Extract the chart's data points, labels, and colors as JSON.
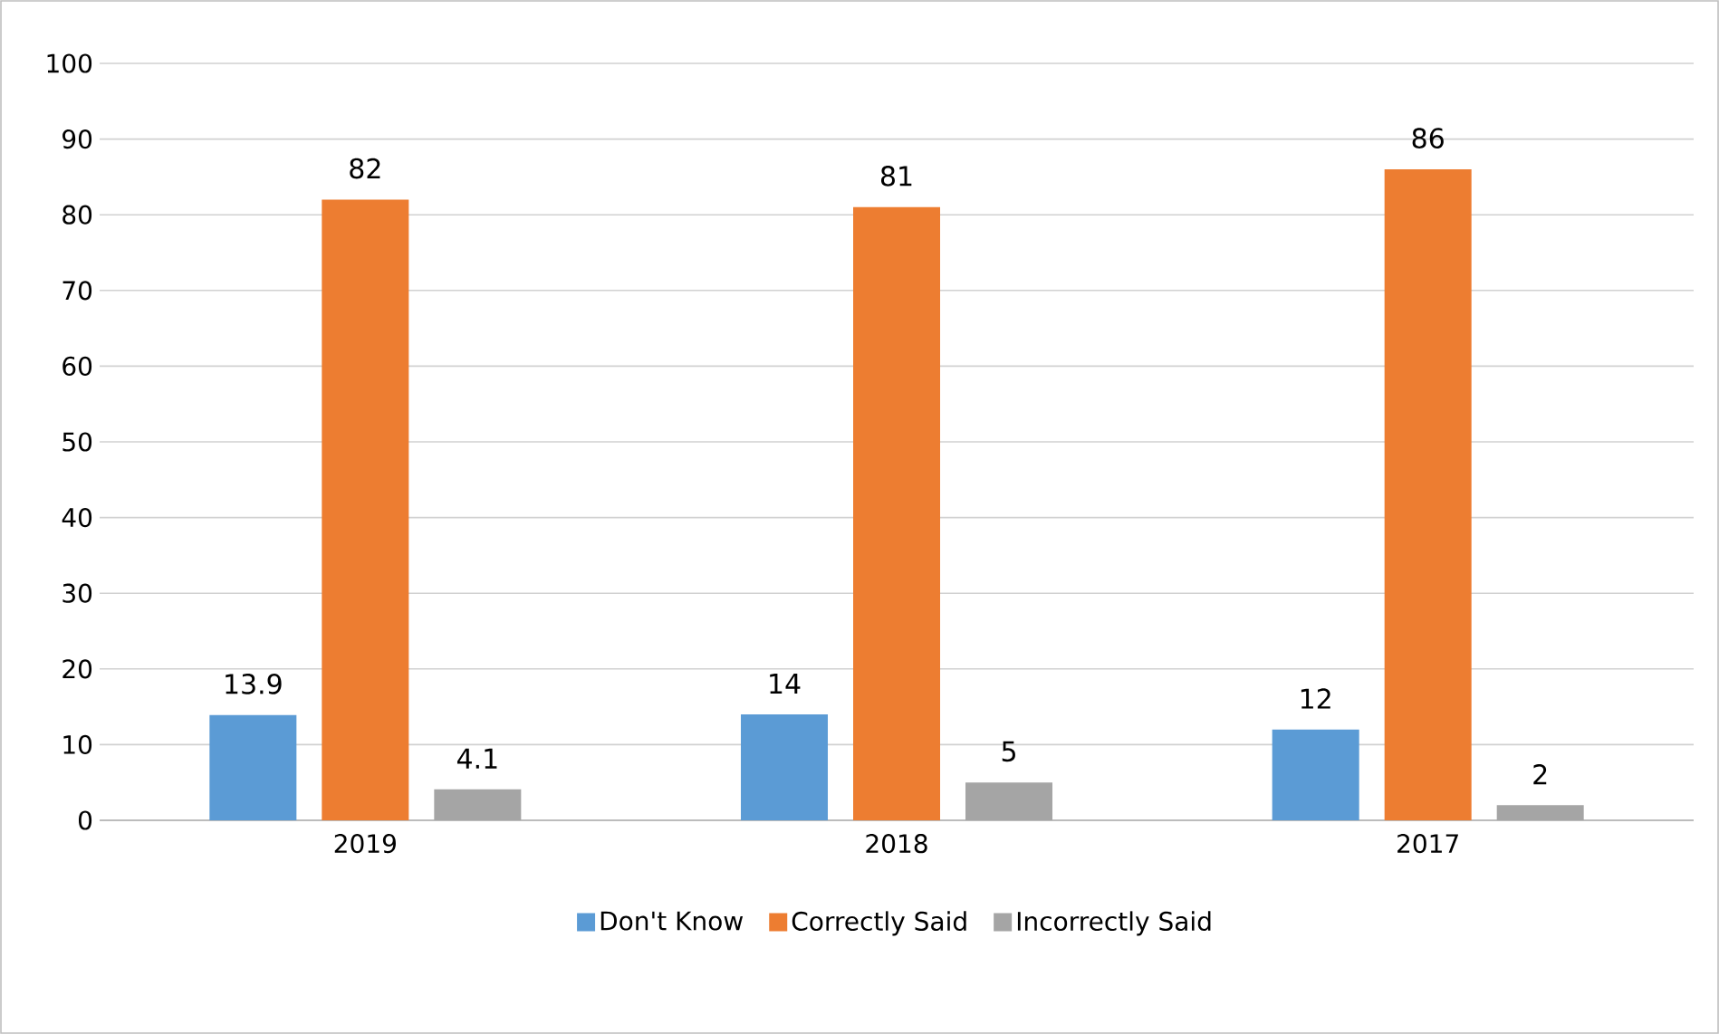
{
  "chart_data": {
    "type": "bar",
    "categories": [
      "2019",
      "2018",
      "2017"
    ],
    "series": [
      {
        "name": "Don't Know",
        "color": "#5b9bd5",
        "values": [
          13.9,
          14,
          12
        ]
      },
      {
        "name": "Correctly Said",
        "color": "#ed7d31",
        "values": [
          82,
          81,
          86
        ]
      },
      {
        "name": "Incorrectly Said",
        "color": "#a5a5a5",
        "values": [
          4.1,
          5,
          2
        ]
      }
    ],
    "ylim": [
      0,
      100
    ],
    "yticks": [
      0,
      10,
      20,
      30,
      40,
      50,
      60,
      70,
      80,
      90,
      100
    ],
    "grid": "y",
    "legend": "bottom",
    "data_labels": true
  }
}
